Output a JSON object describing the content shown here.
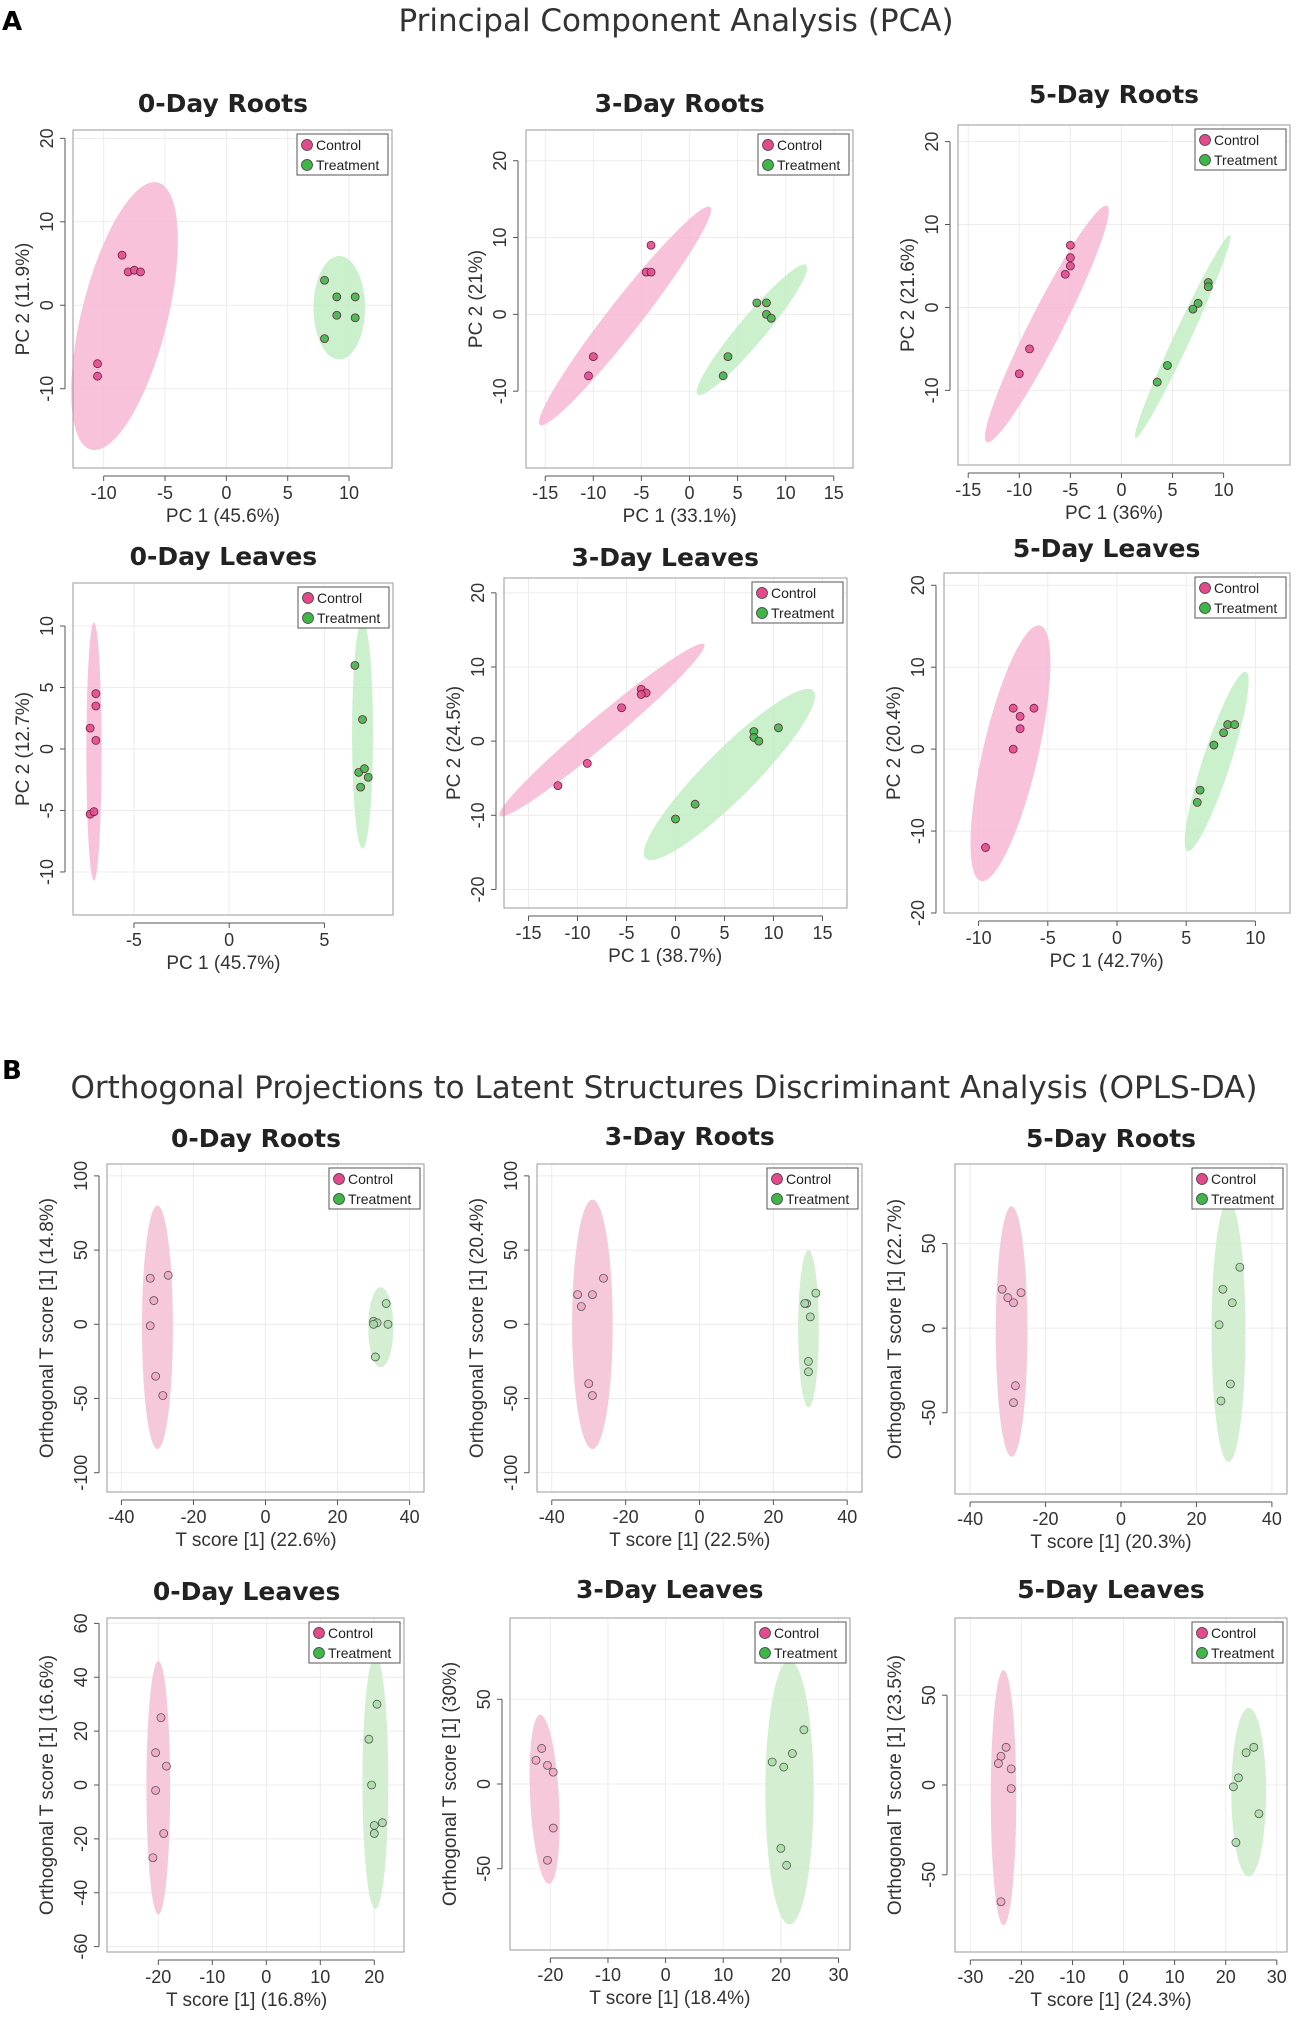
{
  "figure": {
    "label_a": "A",
    "label_b": "B",
    "title_a": "Principal Component Analysis (PCA)",
    "title_b": "Orthogonal Projections to Latent Structures Discriminant Analysis (OPLS-DA)"
  },
  "colors": {
    "control": "#e24a8c",
    "control_fill": "#f7b8d4",
    "treatment": "#3fb54a",
    "treatment_fill": "#c2eec3",
    "opls_control_fill": "#f4c3d5",
    "opls_treatment_fill": "#cfeccd"
  },
  "chart_data": [
    {
      "type": "scatter",
      "section": "A",
      "title": "0-Day Roots",
      "xlabel": "PC 1 (45.6%)",
      "ylabel": "PC 2 (11.9%)",
      "xlim": [
        -12.5,
        13.5
      ],
      "ylim": [
        -19.5,
        21
      ],
      "xticks": [
        -10,
        -5,
        0,
        5,
        10
      ],
      "yticks": [
        -10,
        0,
        10,
        20
      ],
      "legend": [
        "Control",
        "Treatment"
      ],
      "legend_position": "top-right",
      "series": [
        {
          "name": "Control",
          "x": [
            -8.5,
            -8,
            -7.5,
            -7,
            -10.5,
            -10.5
          ],
          "y": [
            6,
            4,
            4.2,
            4,
            -7,
            -8.5
          ],
          "ellipse": {
            "cx": -8.3,
            "cy": -1.3,
            "rx": 3.5,
            "ry": 16.5,
            "angle": 14
          }
        },
        {
          "name": "Treatment",
          "x": [
            8,
            9,
            10.5,
            9,
            10.5,
            8
          ],
          "y": [
            3,
            1,
            1,
            -1.2,
            -1.5,
            -4
          ],
          "ellipse": {
            "cx": 9.2,
            "cy": -0.3,
            "rx": 2.1,
            "ry": 6.2,
            "angle": 0
          }
        }
      ]
    },
    {
      "type": "scatter",
      "section": "A",
      "title": "3-Day Roots",
      "xlabel": "PC 1 (33.1%)",
      "ylabel": "PC 2 (21%)",
      "xlim": [
        -17,
        17
      ],
      "ylim": [
        -20,
        24
      ],
      "xticks": [
        -15,
        -10,
        -5,
        0,
        5,
        10,
        15
      ],
      "yticks": [
        -10,
        0,
        10,
        20
      ],
      "legend": [
        "Control",
        "Treatment"
      ],
      "legend_position": "top-right",
      "series": [
        {
          "name": "Control",
          "x": [
            -4,
            -4.5,
            -4,
            -10,
            -10.5
          ],
          "y": [
            9,
            5.5,
            5.5,
            -5.5,
            -8
          ],
          "ellipse": {
            "cx": -6.7,
            "cy": -0.2,
            "rx": 1.7,
            "ry": 18,
            "angle": 38
          }
        },
        {
          "name": "Treatment",
          "x": [
            7,
            8,
            8,
            8.5,
            4,
            3.5
          ],
          "y": [
            1.5,
            1.5,
            0,
            -0.5,
            -5.5,
            -8
          ],
          "ellipse": {
            "cx": 6.5,
            "cy": -2,
            "rx": 1.4,
            "ry": 11,
            "angle": 40
          }
        }
      ]
    },
    {
      "type": "scatter",
      "section": "A",
      "title": "5-Day Roots",
      "xlabel": "PC 1 (36%)",
      "ylabel": "PC 2 (21.6%)",
      "xlim": [
        -16,
        16.5
      ],
      "ylim": [
        -19,
        22
      ],
      "xticks": [
        -15,
        -10,
        -5,
        0,
        5,
        10
      ],
      "yticks": [
        -10,
        0,
        10,
        20
      ],
      "legend": [
        "Control",
        "Treatment"
      ],
      "legend_position": "top-right",
      "series": [
        {
          "name": "Control",
          "x": [
            -5,
            -5,
            -5,
            -5.5,
            -9,
            -10
          ],
          "y": [
            7.5,
            6,
            5,
            4,
            -5,
            -8
          ],
          "ellipse": {
            "cx": -7.3,
            "cy": -2,
            "rx": 1.6,
            "ry": 16,
            "angle": 27
          }
        },
        {
          "name": "Treatment",
          "x": [
            8.5,
            8.5,
            7.5,
            7,
            4.5,
            3.5
          ],
          "y": [
            3,
            2.5,
            0.5,
            -0.2,
            -7,
            -9
          ],
          "ellipse": {
            "cx": 6,
            "cy": -3.5,
            "rx": 0.8,
            "ry": 13.5,
            "angle": 25
          }
        }
      ]
    },
    {
      "type": "scatter",
      "section": "A",
      "title": "0-Day Leaves",
      "xlabel": "PC 1 (45.7%)",
      "ylabel": "PC 2 (12.7%)",
      "xlim": [
        -8.2,
        8.6
      ],
      "ylim": [
        -13.5,
        13.5
      ],
      "xticks": [
        -5,
        0,
        5
      ],
      "yticks": [
        -10,
        -5,
        0,
        5,
        10
      ],
      "legend": [
        "Control",
        "Treatment"
      ],
      "legend_position": "top-right",
      "series": [
        {
          "name": "Control",
          "x": [
            -7,
            -7,
            -7.3,
            -7,
            -7.3,
            -7.1
          ],
          "y": [
            4.5,
            3.5,
            1.7,
            0.7,
            -5.3,
            -5.1
          ],
          "ellipse": {
            "cx": -7.1,
            "cy": -0.2,
            "rx": 0.4,
            "ry": 10.5,
            "angle": 0
          }
        },
        {
          "name": "Treatment",
          "x": [
            6.6,
            7.0,
            6.8,
            7.1,
            7.3,
            6.9
          ],
          "y": [
            6.8,
            2.4,
            -1.9,
            -1.6,
            -2.3,
            -3.1
          ],
          "ellipse": {
            "cx": 7.0,
            "cy": 1.2,
            "rx": 0.55,
            "ry": 9.3,
            "angle": 0
          }
        }
      ]
    },
    {
      "type": "scatter",
      "section": "A",
      "title": "3-Day Leaves",
      "xlabel": "PC 1 (38.7%)",
      "ylabel": "PC 2 (24.5%)",
      "xlim": [
        -17.5,
        17.5
      ],
      "ylim": [
        -22.5,
        22
      ],
      "xticks": [
        -15,
        -10,
        -5,
        0,
        5,
        10,
        15
      ],
      "yticks": [
        -20,
        -10,
        0,
        10,
        20
      ],
      "legend": [
        "Control",
        "Treatment"
      ],
      "legend_position": "top-right",
      "series": [
        {
          "name": "Control",
          "x": [
            -3.5,
            -3,
            -3.5,
            -5.5,
            -9,
            -12
          ],
          "y": [
            7,
            6.5,
            6.3,
            4.5,
            -3,
            -6
          ],
          "ellipse": {
            "cx": -7.5,
            "cy": 1.5,
            "rx": 1.4,
            "ry": 18,
            "angle": 50
          }
        },
        {
          "name": "Treatment",
          "x": [
            8,
            8,
            8.5,
            10.5,
            2,
            0
          ],
          "y": [
            1.3,
            0.5,
            0,
            1.8,
            -8.5,
            -10.5
          ],
          "ellipse": {
            "cx": 5.5,
            "cy": -4.5,
            "rx": 2.5,
            "ry": 16,
            "angle": 45
          }
        }
      ]
    },
    {
      "type": "scatter",
      "section": "A",
      "title": "5-Day Leaves",
      "xlabel": "PC 1 (42.7%)",
      "ylabel": "PC 2 (20.4%)",
      "xlim": [
        -12.5,
        12.5
      ],
      "ylim": [
        -20,
        21.5
      ],
      "xticks": [
        -10,
        -5,
        0,
        5,
        10
      ],
      "yticks": [
        -20,
        -10,
        0,
        10,
        20
      ],
      "legend": [
        "Control",
        "Treatment"
      ],
      "legend_position": "top-right",
      "series": [
        {
          "name": "Control",
          "x": [
            -7.5,
            -7,
            -6,
            -7,
            -7.5,
            -9.5
          ],
          "y": [
            5,
            4,
            5,
            2.5,
            0,
            -12
          ],
          "ellipse": {
            "cx": -7.7,
            "cy": -0.5,
            "rx": 2.0,
            "ry": 16,
            "angle": 13
          }
        },
        {
          "name": "Treatment",
          "x": [
            8,
            8.5,
            7.7,
            7,
            6,
            5.8
          ],
          "y": [
            3,
            3,
            2,
            0.5,
            -5,
            -6.5
          ],
          "ellipse": {
            "cx": 7.2,
            "cy": -1.5,
            "rx": 1.0,
            "ry": 11.5,
            "angle": 18
          }
        }
      ]
    },
    {
      "type": "scatter",
      "section": "B",
      "title": "0-Day Roots",
      "xlabel": "T score [1] (22.6%)",
      "ylabel": "Orthogonal  T score [1] (14.8%)",
      "xlim": [
        -44,
        44
      ],
      "ylim": [
        -113,
        108
      ],
      "xticks": [
        -40,
        -20,
        0,
        20,
        40
      ],
      "yticks": [
        -100,
        -50,
        0,
        50,
        100
      ],
      "legend": [
        "Control",
        "Treatment"
      ],
      "legend_position": "top-right",
      "series": [
        {
          "name": "Control",
          "x": [
            -32,
            -27,
            -31,
            -32,
            -30.5,
            -28.5
          ],
          "y": [
            31,
            33,
            16,
            -1,
            -35,
            -48
          ],
          "ellipse": {
            "cx": -30,
            "cy": -2,
            "rx": 4.3,
            "ry": 82,
            "angle": 0
          }
        },
        {
          "name": "Treatment",
          "x": [
            30,
            31,
            30,
            33.5,
            34,
            30.5
          ],
          "y": [
            2,
            1,
            0,
            14,
            0,
            -22
          ],
          "ellipse": {
            "cx": 32,
            "cy": -2,
            "rx": 3.5,
            "ry": 27,
            "angle": 0
          }
        }
      ]
    },
    {
      "type": "scatter",
      "section": "B",
      "title": "3-Day Roots",
      "xlabel": "T score [1] (22.5%)",
      "ylabel": "Orthogonal  T score [1] (20.4%)",
      "xlim": [
        -44,
        44
      ],
      "ylim": [
        -113,
        108
      ],
      "xticks": [
        -40,
        -20,
        0,
        20,
        40
      ],
      "yticks": [
        -100,
        -50,
        0,
        50,
        100
      ],
      "legend": [
        "Control",
        "Treatment"
      ],
      "legend_position": "top-right",
      "series": [
        {
          "name": "Control",
          "x": [
            -33,
            -32,
            -29,
            -26,
            -30,
            -29
          ],
          "y": [
            20,
            12,
            20,
            31,
            -40,
            -48
          ],
          "ellipse": {
            "cx": -29,
            "cy": 0,
            "rx": 5.5,
            "ry": 84,
            "angle": 0
          }
        },
        {
          "name": "Treatment",
          "x": [
            29,
            28.5,
            30,
            31.5,
            29.5,
            29.5
          ],
          "y": [
            14,
            14,
            5,
            21,
            -25,
            -32
          ],
          "ellipse": {
            "cx": 29.5,
            "cy": -3,
            "rx": 2.8,
            "ry": 53,
            "angle": 0
          }
        }
      ]
    },
    {
      "type": "scatter",
      "section": "B",
      "title": "5-Day Roots",
      "xlabel": "T score [1] (20.3%)",
      "ylabel": "Orthogonal  T score [1] (22.7%)",
      "xlim": [
        -44,
        44
      ],
      "ylim": [
        -98,
        97
      ],
      "xticks": [
        -40,
        -20,
        0,
        20,
        40
      ],
      "yticks": [
        -50,
        0,
        50
      ],
      "legend": [
        "Control",
        "Treatment"
      ],
      "legend_position": "top-right",
      "series": [
        {
          "name": "Control",
          "x": [
            -31.5,
            -30,
            -28.5,
            -26.5,
            -28,
            -28.5
          ],
          "y": [
            23,
            18,
            15,
            21,
            -34,
            -44
          ],
          "ellipse": {
            "cx": -29,
            "cy": -2,
            "rx": 4.2,
            "ry": 74,
            "angle": 0
          }
        },
        {
          "name": "Treatment",
          "x": [
            31.5,
            27,
            29.5,
            26,
            29,
            26.5
          ],
          "y": [
            36,
            23,
            15,
            2,
            -33,
            -43
          ],
          "ellipse": {
            "cx": 28.5,
            "cy": -2,
            "rx": 4.5,
            "ry": 77,
            "angle": 0
          }
        }
      ]
    },
    {
      "type": "scatter",
      "section": "B",
      "title": "0-Day Leaves",
      "xlabel": "T score [1] (16.8%)",
      "ylabel": "Orthogonal  T score [1] (16.6%)",
      "xlim": [
        -29.5,
        25.5
      ],
      "ylim": [
        -62,
        62
      ],
      "xticks": [
        -20,
        -10,
        0,
        10,
        20
      ],
      "yticks": [
        -60,
        -40,
        -20,
        0,
        20,
        40,
        60
      ],
      "legend": [
        "Control",
        "Treatment"
      ],
      "legend_position": "top-right",
      "series": [
        {
          "name": "Control",
          "x": [
            -19.5,
            -20.5,
            -18.5,
            -20.5,
            -19,
            -21
          ],
          "y": [
            25,
            12,
            7,
            -2,
            -18,
            -27
          ],
          "ellipse": {
            "cx": -20,
            "cy": -1,
            "rx": 2.2,
            "ry": 47,
            "angle": 0
          }
        },
        {
          "name": "Treatment",
          "x": [
            20.5,
            19,
            19.5,
            20,
            21.5,
            20
          ],
          "y": [
            30,
            17,
            0,
            -15,
            -14,
            -18
          ],
          "ellipse": {
            "cx": 20.2,
            "cy": 1,
            "rx": 2.4,
            "ry": 47,
            "angle": 0
          }
        }
      ]
    },
    {
      "type": "scatter",
      "section": "B",
      "title": "3-Day Leaves",
      "xlabel": "T score [1] (18.4%)",
      "ylabel": "Orthogonal  T score [1] (30%)",
      "xlim": [
        -27,
        32
      ],
      "ylim": [
        -98,
        98
      ],
      "xticks": [
        -20,
        -10,
        0,
        10,
        20,
        30
      ],
      "yticks": [
        -50,
        0,
        50
      ],
      "legend": [
        "Control",
        "Treatment"
      ],
      "legend_position": "top-right",
      "series": [
        {
          "name": "Control",
          "x": [
            -22.5,
            -21.5,
            -20.5,
            -19.5,
            -19.5,
            -20.5
          ],
          "y": [
            14,
            21,
            11,
            7,
            -26,
            -45
          ],
          "ellipse": {
            "cx": -21,
            "cy": -9,
            "rx": 2.5,
            "ry": 50,
            "angle": -3
          }
        },
        {
          "name": "Treatment",
          "x": [
            24,
            22,
            18.5,
            20.5,
            20,
            21
          ],
          "y": [
            32,
            18,
            13,
            10,
            -38,
            -48
          ],
          "ellipse": {
            "cx": 21.5,
            "cy": -5,
            "rx": 4.2,
            "ry": 78,
            "angle": 0
          }
        }
      ]
    },
    {
      "type": "scatter",
      "section": "B",
      "title": "5-Day Leaves",
      "xlabel": "T score [1] (24.3%)",
      "ylabel": "Orthogonal  T score [1] (23.5%)",
      "xlim": [
        -33,
        32
      ],
      "ylim": [
        -93,
        93
      ],
      "xticks": [
        -30,
        -20,
        -10,
        0,
        10,
        20,
        30
      ],
      "yticks": [
        -50,
        0,
        50
      ],
      "legend": [
        "Control",
        "Treatment"
      ],
      "legend_position": "top-right",
      "series": [
        {
          "name": "Control",
          "x": [
            -23,
            -24,
            -24.5,
            -22,
            -22,
            -24
          ],
          "y": [
            21,
            16,
            12,
            9,
            -2,
            -65
          ],
          "ellipse": {
            "cx": -23.5,
            "cy": -7,
            "rx": 2.5,
            "ry": 71,
            "angle": 0
          }
        },
        {
          "name": "Treatment",
          "x": [
            24,
            25.5,
            22.5,
            21.5,
            26.5,
            22
          ],
          "y": [
            18,
            21,
            4,
            -1,
            -16,
            -32
          ],
          "ellipse": {
            "cx": 24.5,
            "cy": -4,
            "rx": 3.4,
            "ry": 47,
            "angle": 0
          }
        }
      ]
    }
  ]
}
